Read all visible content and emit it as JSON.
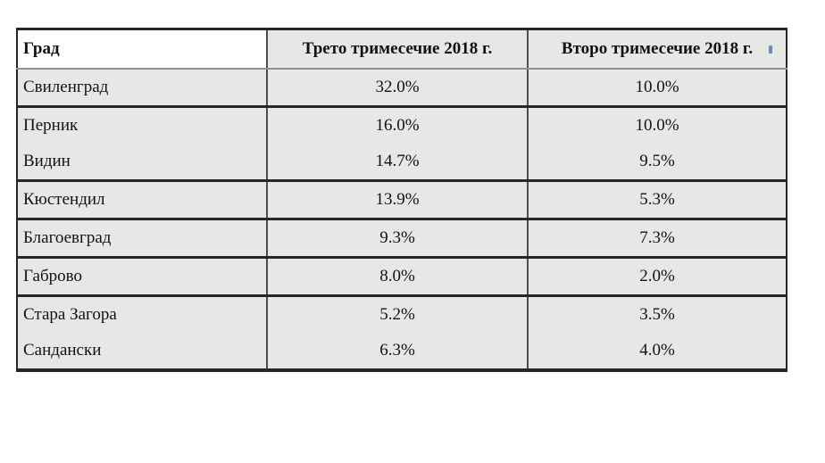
{
  "table": {
    "columns": [
      "Град",
      "Трето тримесечие 2018 г.",
      "Второ тримесечие 2018 г."
    ],
    "rows": [
      {
        "city": "Свиленград",
        "q3_2018": "32.0%",
        "q2_2018": "10.0%",
        "group_break_above": false
      },
      {
        "city": "Перник",
        "q3_2018": "16.0%",
        "q2_2018": "10.0%",
        "group_break_above": true
      },
      {
        "city": "Видин",
        "q3_2018": "14.7%",
        "q2_2018": "9.5%",
        "group_break_above": false
      },
      {
        "city": "Кюстендил",
        "q3_2018": "13.9%",
        "q2_2018": "5.3%",
        "group_break_above": true
      },
      {
        "city": "Благоевград",
        "q3_2018": "9.3%",
        "q2_2018": "7.3%",
        "group_break_above": true
      },
      {
        "city": "Габрово",
        "q3_2018": "8.0%",
        "q2_2018": "2.0%",
        "group_break_above": true
      },
      {
        "city": "Стара Загора",
        "q3_2018": "5.2%",
        "q2_2018": "3.5%",
        "group_break_above": true
      },
      {
        "city": "Сандански",
        "q3_2018": "6.3%",
        "q2_2018": "4.0%",
        "group_break_above": false
      }
    ]
  },
  "colors": {
    "cell_bg": "#e7e7e5",
    "city_header_bg": "#ffffff",
    "border_dark": "#262626",
    "border_mid": "#4d4d4d",
    "header_rule": "#909090",
    "text": "#121212",
    "artifact_blue": "#3d6fae"
  }
}
